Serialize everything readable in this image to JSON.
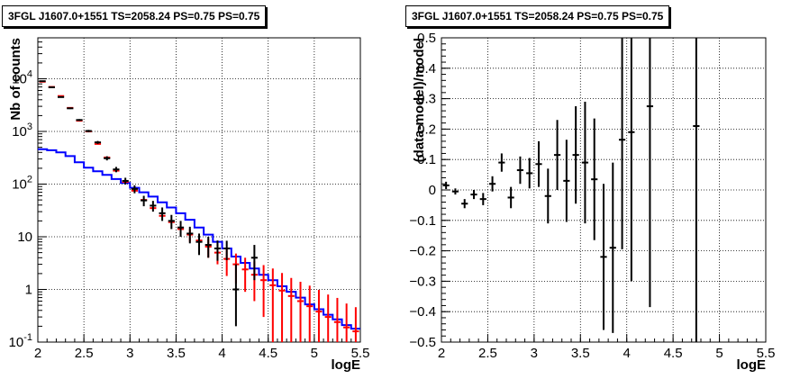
{
  "left_panel": {
    "title": "3FGL J1607.0+1551 TS=2058.24 PS=0.75 PS=0.75"
  },
  "right_panel": {
    "title": "3FGL J1607.0+1551 TS=2058.24 PS=0.75 PS=0.75"
  },
  "chart_data": [
    {
      "type": "line",
      "title": "3FGL J1607.0+1551 TS=2058.24 PS=0.75 PS=0.75",
      "xlabel": "logE",
      "ylabel": "Nb of counts",
      "xlim": [
        2,
        5.5
      ],
      "ylim": [
        0.1,
        60000
      ],
      "yscale": "log",
      "grid": true,
      "xticks": [
        "2",
        "2.5",
        "3",
        "3.5",
        "4",
        "4.5",
        "5",
        "5.5"
      ],
      "yticks": [
        {
          "value": 0.1,
          "base": "10",
          "exp": "-1"
        },
        {
          "value": 1,
          "base": "1",
          "exp": ""
        },
        {
          "value": 10,
          "base": "10",
          "exp": ""
        },
        {
          "value": 100,
          "base": "10",
          "exp": "2"
        },
        {
          "value": 1000,
          "base": "10",
          "exp": "3"
        },
        {
          "value": 10000,
          "base": "10",
          "exp": "4"
        }
      ],
      "bin_edges": [
        2.0,
        2.1,
        2.2,
        2.3,
        2.4,
        2.5,
        2.6,
        2.7,
        2.8,
        2.9,
        3.0,
        3.1,
        3.2,
        3.3,
        3.4,
        3.5,
        3.6,
        3.7,
        3.8,
        3.9,
        4.0,
        4.1,
        4.2,
        4.3,
        4.4,
        4.5,
        4.6,
        4.7,
        4.8,
        4.9,
        5.0,
        5.1,
        5.2,
        5.3,
        5.4,
        5.5
      ],
      "series": [
        {
          "name": "",
          "style": "steps",
          "color": "#0000ff",
          "values": [
            460,
            440,
            400,
            340,
            260,
            205,
            175,
            150,
            125,
            105,
            85,
            70,
            58,
            45,
            36,
            28,
            21,
            15,
            11,
            8,
            6,
            4.2,
            3.2,
            2.5,
            1.9,
            1.5,
            1.15,
            0.9,
            0.7,
            0.52,
            0.42,
            0.33,
            0.27,
            0.21,
            0.18
          ]
        },
        {
          "name": "",
          "style": "points",
          "color": "#ff0000",
          "x": [
            2.05,
            2.15,
            2.25,
            2.35,
            2.45,
            2.55,
            2.65,
            2.75,
            2.85,
            2.95,
            3.05,
            3.15,
            3.25,
            3.35,
            3.45,
            3.55,
            3.65,
            3.75,
            3.85,
            3.95,
            4.05,
            4.15,
            4.25,
            4.35,
            4.45,
            4.55,
            4.65,
            4.75,
            4.85,
            4.95,
            5.05,
            5.15,
            5.25,
            5.35,
            5.45
          ],
          "y": [
            8800,
            7000,
            4700,
            2800,
            1600,
            1000,
            580,
            320,
            180,
            110,
            75,
            50,
            35,
            25,
            19,
            14,
            11,
            8.5,
            6.5,
            5,
            3.8,
            3,
            2.4,
            1.9,
            1.5,
            1.2,
            0.95,
            0.75,
            0.6,
            0.48,
            0.38,
            0.3,
            0.24,
            0.19,
            0.16
          ],
          "err_low": [
            0,
            0,
            0,
            0,
            0,
            0,
            0,
            0,
            0,
            0,
            0,
            0,
            0,
            0,
            0,
            0,
            3,
            3,
            2.5,
            2,
            2,
            1.7,
            1.5,
            1.3,
            1.2,
            1.1,
            0.9,
            0.72,
            0.58,
            0.46,
            0.37,
            0.29,
            0.23,
            0.18,
            0.16
          ],
          "err_high": [
            0,
            0,
            0,
            0,
            0,
            0,
            0,
            0,
            0,
            0,
            0,
            0,
            0,
            0,
            0,
            0,
            3,
            3,
            2.5,
            2.2,
            2,
            1.8,
            1.6,
            1.5,
            1.4,
            1.3,
            1.1,
            0.9,
            0.8,
            0.7,
            0.6,
            0.5,
            0.45,
            0.35,
            0.3
          ]
        },
        {
          "name": "",
          "style": "points",
          "color": "#000000",
          "x": [
            2.05,
            2.15,
            2.25,
            2.35,
            2.45,
            2.55,
            2.65,
            2.75,
            2.85,
            2.95,
            3.05,
            3.15,
            3.25,
            3.35,
            3.45,
            3.55,
            3.65,
            3.75,
            3.85,
            3.95,
            4.05,
            4.15,
            4.35
          ],
          "y": [
            9000,
            6900,
            4500,
            2750,
            1650,
            1020,
            620,
            310,
            190,
            115,
            81,
            49,
            39,
            28,
            20,
            15,
            11.5,
            8,
            7,
            6,
            6,
            1,
            4
          ],
          "err_low": [
            150,
            130,
            110,
            85,
            65,
            50,
            40,
            28,
            22,
            17,
            14,
            11,
            9,
            8,
            6,
            5,
            4,
            3.5,
            3,
            2.5,
            2.4,
            0.8,
            2.5
          ],
          "err_high": [
            150,
            130,
            110,
            85,
            65,
            50,
            40,
            28,
            22,
            17,
            14,
            11,
            9,
            8,
            6,
            5,
            4,
            3.5,
            3,
            2.5,
            2.4,
            2,
            3
          ]
        }
      ]
    },
    {
      "type": "scatter",
      "title": "3FGL J1607.0+1551 TS=2058.24 PS=0.75 PS=0.75",
      "xlabel": "logE",
      "ylabel": "(data-model)/model",
      "xlim": [
        2,
        5.5
      ],
      "ylim": [
        -0.5,
        0.5
      ],
      "grid": true,
      "xticks": [
        "2",
        "2.5",
        "3",
        "3.5",
        "4",
        "4.5",
        "5",
        "5.5"
      ],
      "yticks": [
        "-0.5",
        "-0.4",
        "-0.3",
        "-0.2",
        "-0.1",
        "0",
        "0.1",
        "0.2",
        "0.3",
        "0.4",
        "0.5"
      ],
      "series": [
        {
          "name": "",
          "color": "#000000",
          "x": [
            2.05,
            2.15,
            2.25,
            2.35,
            2.45,
            2.55,
            2.65,
            2.75,
            2.85,
            2.95,
            3.05,
            3.15,
            3.25,
            3.35,
            3.45,
            3.55,
            3.65,
            3.75,
            3.85,
            3.95,
            4.05,
            4.25,
            4.75
          ],
          "y": [
            0.015,
            -0.005,
            -0.045,
            -0.015,
            -0.03,
            0.02,
            0.09,
            -0.025,
            0.065,
            0.055,
            0.085,
            -0.02,
            0.115,
            0.03,
            0.115,
            0.09,
            0.035,
            -0.22,
            -0.19,
            0.165,
            0.19,
            0.275,
            0.21
          ],
          "err": [
            0.012,
            0.01,
            0.015,
            0.015,
            0.02,
            0.025,
            0.03,
            0.035,
            0.045,
            0.05,
            0.075,
            0.09,
            0.115,
            0.135,
            0.16,
            0.2,
            0.2,
            0.24,
            0.28,
            0.36,
            0.49,
            0.66,
            0.78
          ]
        }
      ]
    }
  ]
}
